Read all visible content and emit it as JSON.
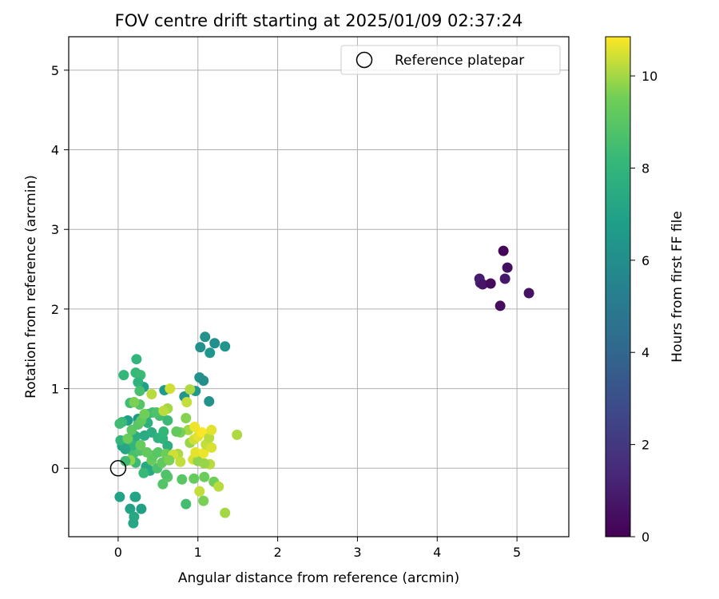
{
  "chart_data": {
    "type": "scatter",
    "title": "FOV centre drift starting at 2025/01/09 02:37:24",
    "xlabel": "Angular distance from reference (arcmin)",
    "ylabel": "Rotation from reference (arcmin)",
    "xlim": [
      -0.62,
      5.65
    ],
    "ylim": [
      -0.86,
      5.42
    ],
    "xticks": [
      0,
      1,
      2,
      3,
      4,
      5
    ],
    "yticks": [
      0,
      1,
      2,
      3,
      4,
      5
    ],
    "grid": true,
    "legend": {
      "placement": "top-right",
      "entries": [
        "Reference platepar"
      ]
    },
    "reference_point": {
      "x": 0,
      "y": 0,
      "label": "Reference platepar"
    },
    "colorbar": {
      "label": "Hours from first FF file",
      "range": [
        0,
        10.85
      ],
      "ticks": [
        0,
        2,
        4,
        6,
        8,
        10
      ],
      "colormap": "viridis"
    },
    "points": [
      {
        "x": 4.83,
        "y": 2.73,
        "c": 0.1
      },
      {
        "x": 4.88,
        "y": 2.52,
        "c": 0.5
      },
      {
        "x": 4.53,
        "y": 2.38,
        "c": 0.9
      },
      {
        "x": 4.54,
        "y": 2.33,
        "c": 1.1
      },
      {
        "x": 4.57,
        "y": 2.31,
        "c": 0.7
      },
      {
        "x": 4.67,
        "y": 2.32,
        "c": 0.3
      },
      {
        "x": 4.85,
        "y": 2.38,
        "c": 0.8
      },
      {
        "x": 5.15,
        "y": 2.2,
        "c": 0.6
      },
      {
        "x": 4.79,
        "y": 2.04,
        "c": 0.4
      },
      {
        "x": 1.09,
        "y": 1.65,
        "c": 6.2
      },
      {
        "x": 1.21,
        "y": 1.57,
        "c": 6.0
      },
      {
        "x": 1.34,
        "y": 1.53,
        "c": 6.3
      },
      {
        "x": 1.03,
        "y": 1.52,
        "c": 6.1
      },
      {
        "x": 1.15,
        "y": 1.45,
        "c": 6.4
      },
      {
        "x": 1.02,
        "y": 1.14,
        "c": 6.2
      },
      {
        "x": 1.07,
        "y": 1.1,
        "c": 6.0
      },
      {
        "x": 0.97,
        "y": 0.97,
        "c": 6.5
      },
      {
        "x": 0.83,
        "y": 0.9,
        "c": 6.3
      },
      {
        "x": 1.14,
        "y": 0.84,
        "c": 6.2
      },
      {
        "x": 0.58,
        "y": 0.98,
        "c": 6.7
      },
      {
        "x": 0.32,
        "y": 1.02,
        "c": 6.9
      },
      {
        "x": 0.25,
        "y": 0.62,
        "c": 6.5
      },
      {
        "x": 0.12,
        "y": 0.6,
        "c": 6.8
      },
      {
        "x": 0.11,
        "y": 0.25,
        "c": 6.6
      },
      {
        "x": 0.17,
        "y": 0.3,
        "c": 6.4
      },
      {
        "x": 0.05,
        "y": 0.28,
        "c": 7.0
      },
      {
        "x": 0.02,
        "y": -0.36,
        "c": 7.0
      },
      {
        "x": 0.21,
        "y": -0.36,
        "c": 7.2
      },
      {
        "x": 0.22,
        "y": -0.36,
        "c": 7.1
      },
      {
        "x": 0.15,
        "y": -0.51,
        "c": 7.0
      },
      {
        "x": 0.29,
        "y": -0.51,
        "c": 6.9
      },
      {
        "x": 0.2,
        "y": -0.61,
        "c": 7.3
      },
      {
        "x": 0.19,
        "y": -0.69,
        "c": 7.2
      },
      {
        "x": 0.23,
        "y": 1.37,
        "c": 8.0
      },
      {
        "x": 0.22,
        "y": 1.2,
        "c": 8.2
      },
      {
        "x": 0.28,
        "y": 1.17,
        "c": 8.3
      },
      {
        "x": 0.07,
        "y": 1.17,
        "c": 8.1
      },
      {
        "x": 0.25,
        "y": 1.08,
        "c": 7.9
      },
      {
        "x": 0.15,
        "y": 0.82,
        "c": 8.4
      },
      {
        "x": 0.27,
        "y": 0.97,
        "c": 8.6
      },
      {
        "x": 0.37,
        "y": 0.68,
        "c": 8.3
      },
      {
        "x": 0.43,
        "y": 0.7,
        "c": 8.5
      },
      {
        "x": 0.05,
        "y": 0.58,
        "c": 8.2
      },
      {
        "x": 0.02,
        "y": 0.56,
        "c": 8.4
      },
      {
        "x": 0.03,
        "y": 0.35,
        "c": 8.0
      },
      {
        "x": 0.22,
        "y": 0.4,
        "c": 7.6
      },
      {
        "x": 0.33,
        "y": 0.41,
        "c": 7.5
      },
      {
        "x": 0.37,
        "y": 0.57,
        "c": 7.7
      },
      {
        "x": 0.42,
        "y": 0.45,
        "c": 7.6
      },
      {
        "x": 0.5,
        "y": 0.38,
        "c": 7.8
      },
      {
        "x": 0.56,
        "y": 0.37,
        "c": 7.9
      },
      {
        "x": 0.62,
        "y": 0.28,
        "c": 7.7
      },
      {
        "x": 0.57,
        "y": 0.46,
        "c": 8.1
      },
      {
        "x": 0.62,
        "y": 0.6,
        "c": 8.3
      },
      {
        "x": 0.52,
        "y": 0.66,
        "c": 8.5
      },
      {
        "x": 0.48,
        "y": 0.7,
        "c": 8.7
      },
      {
        "x": 0.35,
        "y": 0.02,
        "c": 7.3
      },
      {
        "x": 0.4,
        "y": -0.03,
        "c": 7.4
      },
      {
        "x": 0.32,
        "y": -0.06,
        "c": 8.2
      },
      {
        "x": 0.22,
        "y": 0.07,
        "c": 8.3
      },
      {
        "x": 0.19,
        "y": 0.18,
        "c": 8.6
      },
      {
        "x": 0.27,
        "y": 0.22,
        "c": 8.8
      },
      {
        "x": 0.18,
        "y": 0.29,
        "c": 8.0
      },
      {
        "x": 0.09,
        "y": 0.24,
        "c": 7.2
      },
      {
        "x": 0.49,
        "y": 0.0,
        "c": 8.7
      },
      {
        "x": 0.56,
        "y": -0.2,
        "c": 8.9
      },
      {
        "x": 0.62,
        "y": -0.11,
        "c": 9.0
      },
      {
        "x": 0.6,
        "y": -0.08,
        "c": 8.8
      },
      {
        "x": 0.55,
        "y": 0.07,
        "c": 9.2
      },
      {
        "x": 0.42,
        "y": 0.1,
        "c": 9.3
      },
      {
        "x": 0.44,
        "y": 0.16,
        "c": 9.1
      },
      {
        "x": 0.5,
        "y": 0.2,
        "c": 9.0
      },
      {
        "x": 0.6,
        "y": 0.18,
        "c": 9.4
      },
      {
        "x": 0.36,
        "y": 0.2,
        "c": 9.2
      },
      {
        "x": 0.28,
        "y": 0.29,
        "c": 9.3
      },
      {
        "x": 0.12,
        "y": 0.37,
        "c": 9.4
      },
      {
        "x": 0.17,
        "y": 0.48,
        "c": 9.1
      },
      {
        "x": 0.25,
        "y": 0.55,
        "c": 9.0
      },
      {
        "x": 0.29,
        "y": 0.6,
        "c": 9.2
      },
      {
        "x": 0.33,
        "y": 0.68,
        "c": 9.5
      },
      {
        "x": 0.27,
        "y": 0.8,
        "c": 8.9
      },
      {
        "x": 0.2,
        "y": 0.83,
        "c": 9.6
      },
      {
        "x": 0.42,
        "y": 0.93,
        "c": 10.2
      },
      {
        "x": 0.65,
        "y": 1.0,
        "c": 10.4
      },
      {
        "x": 0.9,
        "y": 0.99,
        "c": 10.1
      },
      {
        "x": 0.86,
        "y": 0.83,
        "c": 10.3
      },
      {
        "x": 0.85,
        "y": 0.63,
        "c": 9.7
      },
      {
        "x": 0.62,
        "y": 0.75,
        "c": 10.0
      },
      {
        "x": 0.57,
        "y": 0.72,
        "c": 10.2
      },
      {
        "x": 0.15,
        "y": 0.1,
        "c": 9.8
      },
      {
        "x": 0.09,
        "y": 0.09,
        "c": 8.4
      },
      {
        "x": 0.85,
        "y": -0.45,
        "c": 8.5
      },
      {
        "x": 0.8,
        "y": -0.14,
        "c": 9.0
      },
      {
        "x": 0.95,
        "y": -0.13,
        "c": 9.3
      },
      {
        "x": 1.08,
        "y": -0.11,
        "c": 9.4
      },
      {
        "x": 1.2,
        "y": -0.17,
        "c": 9.5
      },
      {
        "x": 1.02,
        "y": -0.29,
        "c": 10.3
      },
      {
        "x": 1.07,
        "y": -0.41,
        "c": 9.6
      },
      {
        "x": 1.26,
        "y": -0.23,
        "c": 10.2
      },
      {
        "x": 1.34,
        "y": -0.56,
        "c": 10.0
      },
      {
        "x": 0.75,
        "y": 0.18,
        "c": 10.1
      },
      {
        "x": 0.78,
        "y": 0.08,
        "c": 10.3
      },
      {
        "x": 0.94,
        "y": 0.11,
        "c": 10.5
      },
      {
        "x": 1.0,
        "y": 0.09,
        "c": 9.8
      },
      {
        "x": 0.97,
        "y": 0.2,
        "c": 10.6
      },
      {
        "x": 1.07,
        "y": 0.19,
        "c": 10.7
      },
      {
        "x": 1.15,
        "y": 0.05,
        "c": 10.2
      },
      {
        "x": 0.9,
        "y": 0.32,
        "c": 9.9
      },
      {
        "x": 0.95,
        "y": 0.36,
        "c": 10.4
      },
      {
        "x": 1.0,
        "y": 0.4,
        "c": 10.6
      },
      {
        "x": 1.05,
        "y": 0.45,
        "c": 10.8
      },
      {
        "x": 1.1,
        "y": 0.3,
        "c": 10.3
      },
      {
        "x": 1.17,
        "y": 0.26,
        "c": 10.5
      },
      {
        "x": 1.14,
        "y": 0.38,
        "c": 10.2
      },
      {
        "x": 1.17,
        "y": 0.48,
        "c": 10.6
      },
      {
        "x": 0.88,
        "y": 0.48,
        "c": 10.0
      },
      {
        "x": 0.96,
        "y": 0.52,
        "c": 10.7
      },
      {
        "x": 0.78,
        "y": 0.45,
        "c": 9.6
      },
      {
        "x": 0.73,
        "y": 0.46,
        "c": 9.2
      },
      {
        "x": 1.49,
        "y": 0.42,
        "c": 10.1
      },
      {
        "x": 0.69,
        "y": 0.17,
        "c": 10.4
      },
      {
        "x": 0.64,
        "y": 0.1,
        "c": 9.6
      },
      {
        "x": 1.08,
        "y": 0.06,
        "c": 9.9
      }
    ]
  }
}
